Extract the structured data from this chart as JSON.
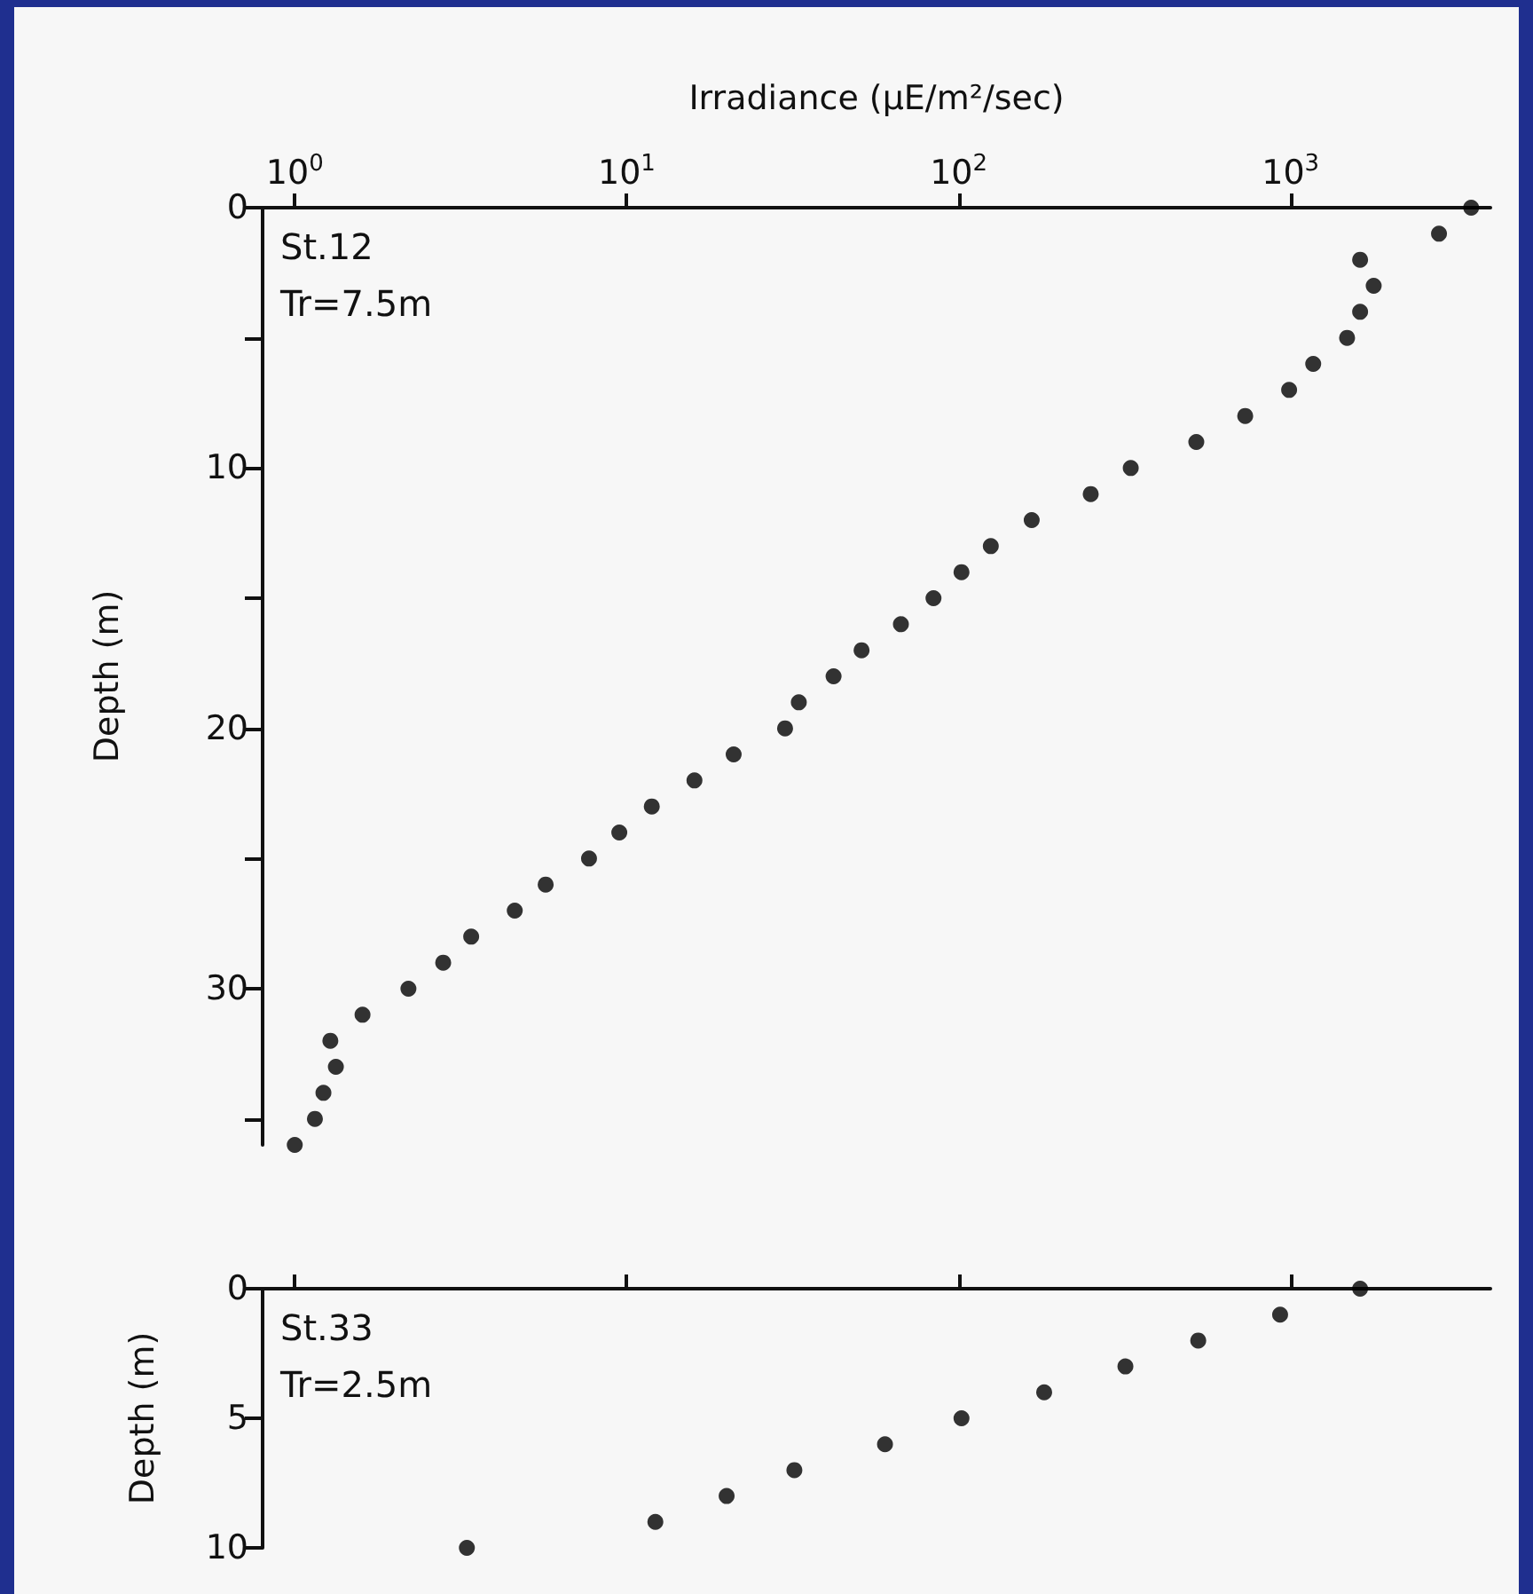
{
  "chart_data": [
    {
      "type": "scatter",
      "xlabel": "Irradiance (µE/m²/sec)",
      "ylabel": "Depth (m)",
      "log": "x",
      "marker": "circle",
      "xlim": [
        0.8,
        4000
      ],
      "xticks": [
        {
          "value": 1,
          "label": "10$^{0}$"
        },
        {
          "value": 10,
          "label": "10$^{1}$"
        },
        {
          "value": 100,
          "label": "10$^{2}$"
        },
        {
          "value": 1000,
          "label": "10$^{3}$"
        }
      ],
      "ylim": [
        36,
        0
      ],
      "yticks": [
        0,
        {
          "value": 5,
          "label": null
        },
        10,
        {
          "value": 15,
          "label": null
        },
        20,
        {
          "value": 25,
          "label": null
        },
        30,
        {
          "value": 35,
          "label": null
        }
      ],
      "annotations": [
        "St.12",
        "Tr=7.5m"
      ],
      "series": [
        {
          "color": "#000000",
          "x": [
            3500,
            2800,
            1620,
            1780,
            1620,
            1480,
            1170,
            990,
            730,
            520,
            330,
            250,
            166,
            125,
            102,
            84,
            67,
            51,
            42,
            33,
            30,
            21,
            16,
            11.9,
            9.5,
            7.7,
            5.7,
            4.6,
            3.4,
            2.8,
            2.2,
            1.6,
            1.28,
            1.33,
            1.22,
            1.15,
            1.0
          ],
          "values": [
            0,
            1,
            2,
            3,
            4,
            5,
            6,
            7,
            8,
            9,
            10,
            11,
            12,
            13,
            14,
            15,
            16,
            17,
            18,
            19,
            20,
            21,
            22,
            23,
            24,
            25,
            26,
            27,
            28,
            29,
            30,
            31,
            32,
            33,
            34,
            35,
            36
          ]
        }
      ]
    },
    {
      "type": "scatter",
      "ylabel": "Depth (m)",
      "log": "x",
      "marker": "circle",
      "tick_labels": "y",
      "xlim": [
        0.8,
        4000
      ],
      "xticks": [
        1,
        10,
        100,
        1000
      ],
      "ylim": [
        10,
        0
      ],
      "yticks": [
        0,
        5,
        10
      ],
      "annotations": [
        "St.33",
        "Tr=2.5m"
      ],
      "series": [
        {
          "color": "#000000",
          "x": [
            1620,
            930,
            527,
            318,
            181,
            102,
            60,
            32,
            20,
            12.2,
            3.3
          ],
          "values": [
            0,
            1,
            2,
            3,
            4,
            5,
            6,
            7,
            8,
            9,
            10
          ]
        }
      ]
    }
  ]
}
